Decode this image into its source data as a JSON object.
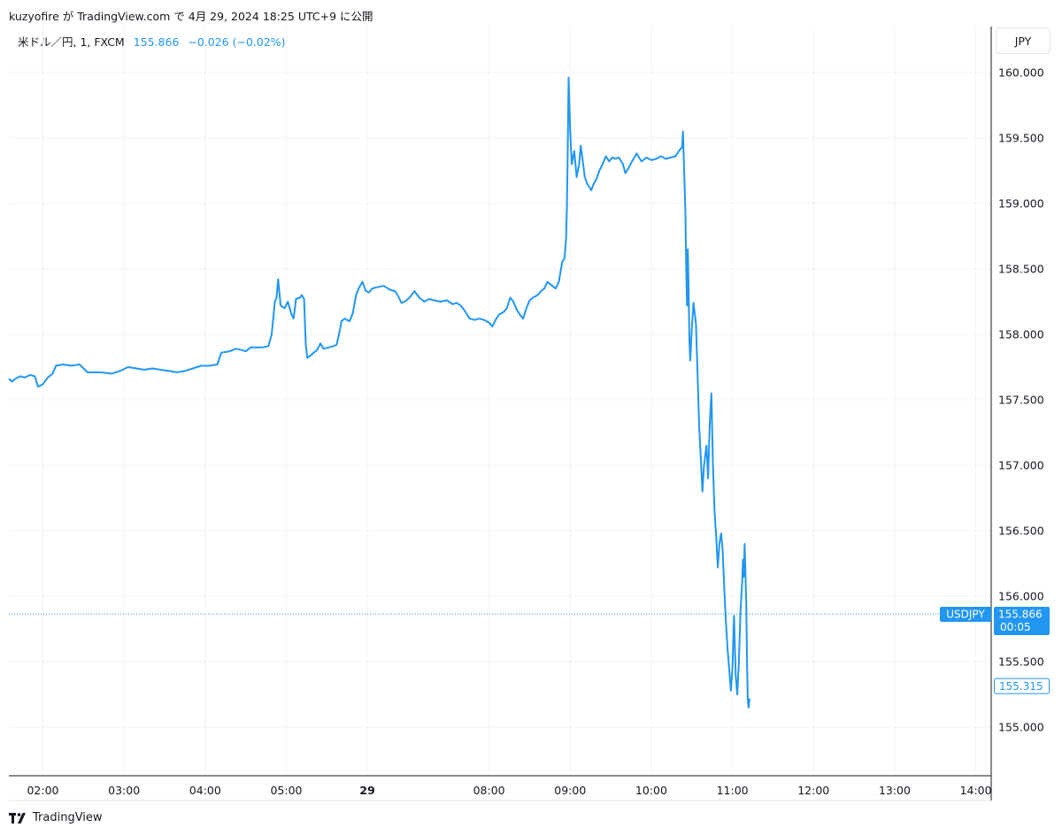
{
  "header": {
    "text": "kuzyofire が TradingView.com で 4月 29, 2024 18:25 UTC+9 に公開"
  },
  "legend": {
    "symbol": "米ドル／円, 1, FXCM",
    "price": "155.866",
    "change": "−0.026 (−0.02%)"
  },
  "currency_button": "JPY",
  "footer": {
    "brand": "TradingView"
  },
  "colors": {
    "line": "#2196f3",
    "grid": "#f0f3fa",
    "axis": "#131722",
    "label_bg": "#2196f3"
  },
  "chart_data": {
    "type": "line",
    "title": "",
    "xlabel": "",
    "ylabel": "",
    "ylim": [
      154.63,
      160.35
    ],
    "yticks": [
      "155.000",
      "155.500",
      "156.000",
      "156.500",
      "157.000",
      "157.500",
      "158.000",
      "158.500",
      "159.000",
      "159.500",
      "160.000"
    ],
    "xticks": [
      {
        "t": 2.0,
        "label": "02:00",
        "bold": false
      },
      {
        "t": 3.0,
        "label": "03:00",
        "bold": false
      },
      {
        "t": 4.0,
        "label": "04:00",
        "bold": false
      },
      {
        "t": 5.0,
        "label": "05:00",
        "bold": false
      },
      {
        "t": 6.0,
        "label": "29",
        "bold": true
      },
      {
        "t": 7.5,
        "label": "08:00",
        "bold": false
      },
      {
        "t": 8.5,
        "label": "09:00",
        "bold": false
      },
      {
        "t": 9.5,
        "label": "10:00",
        "bold": false
      },
      {
        "t": 10.5,
        "label": "11:00",
        "bold": false
      },
      {
        "t": 11.5,
        "label": "12:00",
        "bold": false
      },
      {
        "t": 12.5,
        "label": "13:00",
        "bold": false
      },
      {
        "t": 13.5,
        "label": "14:00",
        "bold": false
      }
    ],
    "xlim": [
      1.58,
      13.69
    ],
    "series": [
      {
        "name": "USDJPY",
        "points": [
          [
            1.58,
            157.66
          ],
          [
            1.62,
            157.64
          ],
          [
            1.66,
            157.66
          ],
          [
            1.72,
            157.68
          ],
          [
            1.78,
            157.67
          ],
          [
            1.84,
            157.69
          ],
          [
            1.9,
            157.68
          ],
          [
            1.94,
            157.6
          ],
          [
            2.0,
            157.62
          ],
          [
            2.06,
            157.67
          ],
          [
            2.12,
            157.7
          ],
          [
            2.16,
            157.76
          ],
          [
            2.25,
            157.77
          ],
          [
            2.35,
            157.76
          ],
          [
            2.45,
            157.77
          ],
          [
            2.55,
            157.71
          ],
          [
            2.7,
            157.71
          ],
          [
            2.85,
            157.7
          ],
          [
            2.95,
            157.72
          ],
          [
            3.05,
            157.75
          ],
          [
            3.15,
            157.74
          ],
          [
            3.25,
            157.73
          ],
          [
            3.35,
            157.74
          ],
          [
            3.45,
            157.73
          ],
          [
            3.55,
            157.72
          ],
          [
            3.65,
            157.71
          ],
          [
            3.75,
            157.72
          ],
          [
            3.85,
            157.74
          ],
          [
            3.95,
            157.76
          ],
          [
            4.05,
            157.76
          ],
          [
            4.15,
            157.77
          ],
          [
            4.2,
            157.86
          ],
          [
            4.3,
            157.87
          ],
          [
            4.38,
            157.89
          ],
          [
            4.45,
            157.88
          ],
          [
            4.5,
            157.87
          ],
          [
            4.56,
            157.9
          ],
          [
            4.7,
            157.9
          ],
          [
            4.78,
            157.91
          ],
          [
            4.82,
            158.0
          ],
          [
            4.86,
            158.25
          ],
          [
            4.88,
            158.28
          ],
          [
            4.9,
            158.42
          ],
          [
            4.93,
            158.22
          ],
          [
            4.98,
            158.2
          ],
          [
            5.02,
            158.25
          ],
          [
            5.06,
            158.16
          ],
          [
            5.09,
            158.12
          ],
          [
            5.12,
            158.27
          ],
          [
            5.17,
            158.28
          ],
          [
            5.19,
            158.3
          ],
          [
            5.22,
            158.27
          ],
          [
            5.24,
            157.92
          ],
          [
            5.26,
            157.82
          ],
          [
            5.3,
            157.84
          ],
          [
            5.34,
            157.86
          ],
          [
            5.38,
            157.88
          ],
          [
            5.42,
            157.93
          ],
          [
            5.46,
            157.89
          ],
          [
            5.52,
            157.9
          ],
          [
            5.58,
            157.91
          ],
          [
            5.62,
            157.92
          ],
          [
            5.66,
            158.03
          ],
          [
            5.68,
            158.1
          ],
          [
            5.72,
            158.12
          ],
          [
            5.78,
            158.1
          ],
          [
            5.82,
            158.16
          ],
          [
            5.86,
            158.3
          ],
          [
            5.9,
            158.36
          ],
          [
            5.94,
            158.4
          ],
          [
            5.98,
            158.33
          ],
          [
            6.02,
            158.32
          ],
          [
            6.06,
            158.35
          ],
          [
            6.12,
            158.36
          ],
          [
            6.2,
            158.37
          ],
          [
            6.28,
            158.34
          ],
          [
            6.34,
            158.33
          ],
          [
            6.38,
            158.29
          ],
          [
            6.42,
            158.24
          ],
          [
            6.46,
            158.25
          ],
          [
            6.52,
            158.28
          ],
          [
            6.58,
            158.33
          ],
          [
            6.64,
            158.28
          ],
          [
            6.7,
            158.25
          ],
          [
            6.76,
            158.27
          ],
          [
            6.82,
            158.26
          ],
          [
            6.9,
            158.25
          ],
          [
            6.98,
            158.26
          ],
          [
            7.05,
            158.23
          ],
          [
            7.1,
            158.24
          ],
          [
            7.15,
            158.22
          ],
          [
            7.2,
            158.18
          ],
          [
            7.26,
            158.12
          ],
          [
            7.32,
            158.11
          ],
          [
            7.38,
            158.12
          ],
          [
            7.44,
            158.11
          ],
          [
            7.5,
            158.09
          ],
          [
            7.54,
            158.06
          ],
          [
            7.58,
            158.11
          ],
          [
            7.62,
            158.15
          ],
          [
            7.68,
            158.17
          ],
          [
            7.72,
            158.2
          ],
          [
            7.76,
            158.28
          ],
          [
            7.8,
            158.25
          ],
          [
            7.84,
            158.19
          ],
          [
            7.88,
            158.15
          ],
          [
            7.92,
            158.12
          ],
          [
            7.96,
            158.2
          ],
          [
            8.0,
            158.26
          ],
          [
            8.04,
            158.28
          ],
          [
            8.1,
            158.3
          ],
          [
            8.14,
            158.33
          ],
          [
            8.18,
            158.35
          ],
          [
            8.22,
            158.4
          ],
          [
            8.26,
            158.38
          ],
          [
            8.32,
            158.35
          ],
          [
            8.36,
            158.4
          ],
          [
            8.4,
            158.55
          ],
          [
            8.43,
            158.58
          ],
          [
            8.45,
            158.74
          ],
          [
            8.46,
            158.98
          ],
          [
            8.47,
            159.4
          ],
          [
            8.48,
            159.96
          ],
          [
            8.5,
            159.55
          ],
          [
            8.52,
            159.3
          ],
          [
            8.55,
            159.4
          ],
          [
            8.58,
            159.2
          ],
          [
            8.61,
            159.3
          ],
          [
            8.63,
            159.44
          ],
          [
            8.65,
            159.35
          ],
          [
            8.68,
            159.2
          ],
          [
            8.71,
            159.15
          ],
          [
            8.73,
            159.13
          ],
          [
            8.76,
            159.1
          ],
          [
            8.79,
            159.15
          ],
          [
            8.82,
            159.18
          ],
          [
            8.86,
            159.25
          ],
          [
            8.9,
            159.3
          ],
          [
            8.94,
            159.36
          ],
          [
            8.98,
            159.32
          ],
          [
            9.02,
            159.35
          ],
          [
            9.06,
            159.34
          ],
          [
            9.1,
            159.35
          ],
          [
            9.15,
            159.3
          ],
          [
            9.18,
            159.23
          ],
          [
            9.22,
            159.27
          ],
          [
            9.27,
            159.33
          ],
          [
            9.32,
            159.38
          ],
          [
            9.38,
            159.32
          ],
          [
            9.44,
            159.35
          ],
          [
            9.5,
            159.33
          ],
          [
            9.56,
            159.34
          ],
          [
            9.62,
            159.36
          ],
          [
            9.68,
            159.34
          ],
          [
            9.74,
            159.35
          ],
          [
            9.8,
            159.36
          ],
          [
            9.84,
            159.4
          ],
          [
            9.88,
            159.43
          ],
          [
            9.89,
            159.55
          ],
          [
            9.9,
            159.35
          ],
          [
            9.92,
            158.95
          ],
          [
            9.93,
            158.5
          ],
          [
            9.94,
            158.22
          ],
          [
            9.95,
            158.65
          ],
          [
            9.96,
            158.35
          ],
          [
            9.97,
            157.95
          ],
          [
            9.98,
            157.8
          ],
          [
            10.0,
            158.05
          ],
          [
            10.02,
            158.24
          ],
          [
            10.05,
            158.08
          ],
          [
            10.07,
            157.7
          ],
          [
            10.09,
            157.3
          ],
          [
            10.11,
            157.05
          ],
          [
            10.13,
            156.8
          ],
          [
            10.15,
            157.0
          ],
          [
            10.18,
            157.15
          ],
          [
            10.2,
            156.9
          ],
          [
            10.22,
            157.3
          ],
          [
            10.24,
            157.55
          ],
          [
            10.26,
            157.0
          ],
          [
            10.28,
            156.65
          ],
          [
            10.3,
            156.45
          ],
          [
            10.32,
            156.22
          ],
          [
            10.34,
            156.4
          ],
          [
            10.36,
            156.48
          ],
          [
            10.38,
            156.35
          ],
          [
            10.4,
            156.05
          ],
          [
            10.42,
            155.8
          ],
          [
            10.44,
            155.6
          ],
          [
            10.46,
            155.45
          ],
          [
            10.48,
            155.28
          ],
          [
            10.5,
            155.45
          ],
          [
            10.52,
            155.85
          ],
          [
            10.54,
            155.4
          ],
          [
            10.56,
            155.25
          ],
          [
            10.58,
            155.5
          ],
          [
            10.6,
            155.9
          ],
          [
            10.62,
            156.1
          ],
          [
            10.63,
            156.28
          ],
          [
            10.64,
            156.15
          ],
          [
            10.65,
            156.4
          ],
          [
            10.67,
            155.95
          ],
          [
            10.68,
            155.5
          ],
          [
            10.69,
            155.2
          ],
          [
            10.7,
            155.15
          ],
          [
            10.71,
            155.22
          ]
        ]
      }
    ],
    "current_price": {
      "label": "USDJPY",
      "value": "155.866",
      "timer": "00:05",
      "y": 155.866
    },
    "secondary_price": {
      "value": "155.315",
      "y": 155.315
    }
  }
}
